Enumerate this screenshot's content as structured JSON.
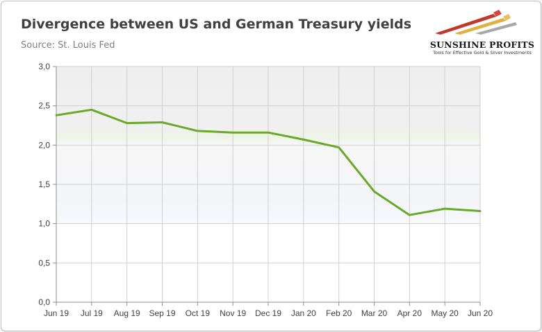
{
  "header": {
    "title": "Divergence between US and German Treasury yields",
    "source": "Source: St. Louis Fed"
  },
  "logo": {
    "brand": "SUNSHINE PROFITS",
    "tagline": "Tools for Effective Gold & Silver Investments",
    "colors": [
      "#c0392b",
      "#e0b040",
      "#a0a0a0"
    ]
  },
  "chart_data": {
    "type": "line",
    "categories": [
      "Jun 19",
      "Jul 19",
      "Aug 19",
      "Sep 19",
      "Oct 19",
      "Nov 19",
      "Dec 19",
      "Jan 20",
      "Feb 20",
      "Mar 20",
      "Apr 20",
      "May 20",
      "Jun 20"
    ],
    "series": [
      {
        "values": [
          2.38,
          2.45,
          2.28,
          2.29,
          2.18,
          2.16,
          2.16,
          2.07,
          1.97,
          1.41,
          1.11,
          1.19,
          1.16
        ],
        "color": "#6aa829"
      }
    ],
    "yticks": [
      "0,0",
      "0,5",
      "1,0",
      "1,5",
      "2,0",
      "2,5",
      "3,0"
    ],
    "ylim": [
      0,
      3
    ],
    "grid": "vertical-and-horizontal",
    "legend": "none"
  }
}
